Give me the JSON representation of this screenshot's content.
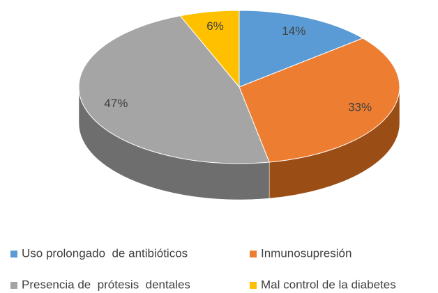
{
  "chart_data": {
    "type": "pie",
    "categories": [
      "Uso prolongado  de antibióticos",
      "Inmunosupresión",
      "Presencia de  prótesis  dentales",
      "Mal control de la diabetes"
    ],
    "values": [
      14,
      33,
      47,
      6
    ],
    "value_labels": [
      "14%",
      "33%",
      "47%",
      "6%"
    ],
    "colors": [
      "#5b9bd5",
      "#ed7d31",
      "#a5a5a5",
      "#ffc000"
    ],
    "side_colors": [
      "#3d6f9c",
      "#9a4d14",
      "#6e6e6e",
      "#a67d00"
    ],
    "legend": "bottom"
  }
}
